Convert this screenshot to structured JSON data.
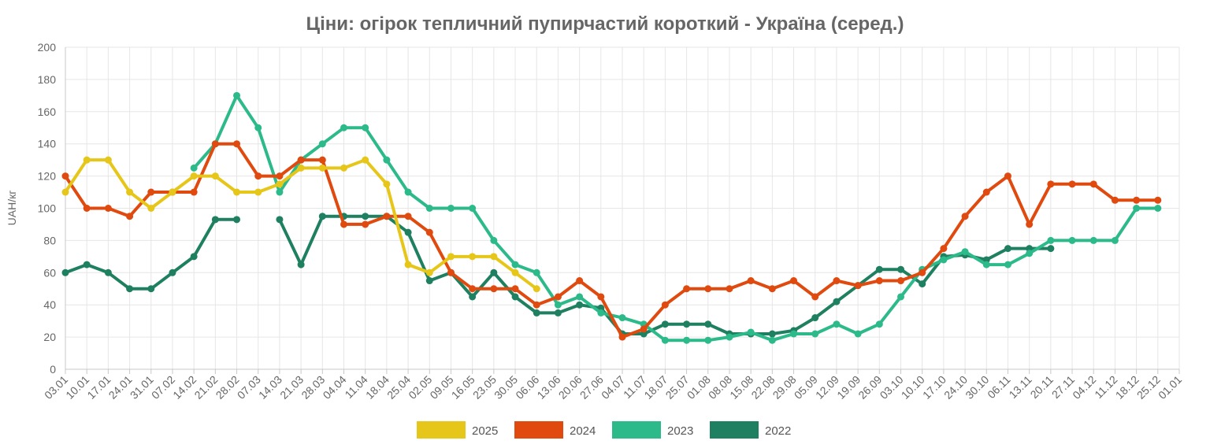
{
  "chart_data": {
    "type": "line",
    "title": "Ціни: огірок тепличний пупирчастий короткий - Україна (серед.)",
    "ylabel": "UAH/кг",
    "xlabel": "",
    "ylim": [
      0,
      200
    ],
    "yticks": [
      0,
      20,
      40,
      60,
      80,
      100,
      120,
      140,
      160,
      180,
      200
    ],
    "grid": true,
    "legend_position": "bottom",
    "categories": [
      "03.01",
      "10.01",
      "17.01",
      "24.01",
      "31.01",
      "07.02",
      "14.02",
      "21.02",
      "28.02",
      "07.03",
      "14.03",
      "21.03",
      "28.03",
      "04.04",
      "11.04",
      "18.04",
      "25.04",
      "02.05",
      "09.05",
      "16.05",
      "23.05",
      "30.05",
      "06.06",
      "13.06",
      "20.06",
      "27.06",
      "04.07",
      "11.07",
      "18.07",
      "25.07",
      "01.08",
      "08.08",
      "15.08",
      "22.08",
      "29.08",
      "05.09",
      "12.09",
      "19.09",
      "26.09",
      "03.10",
      "10.10",
      "17.10",
      "24.10",
      "30.10",
      "06.11",
      "13.11",
      "20.11",
      "27.11",
      "04.12",
      "11.12",
      "18.12",
      "25.12",
      "01.01"
    ],
    "series": [
      {
        "name": "2025",
        "color": "#e6c619",
        "values": [
          110,
          130,
          130,
          110,
          100,
          110,
          120,
          120,
          110,
          110,
          115,
          125,
          125,
          125,
          130,
          115,
          65,
          60,
          70,
          70,
          70,
          60,
          50,
          null,
          null,
          null,
          null,
          null,
          null,
          null,
          null,
          null,
          null,
          null,
          null,
          null,
          null,
          null,
          null,
          null,
          null,
          null,
          null,
          null,
          null,
          null,
          null,
          null,
          null,
          null,
          null,
          null,
          null
        ]
      },
      {
        "name": "2024",
        "color": "#e04a0f",
        "values": [
          120,
          100,
          100,
          95,
          110,
          110,
          110,
          140,
          140,
          120,
          120,
          130,
          130,
          90,
          90,
          95,
          95,
          85,
          60,
          50,
          50,
          50,
          40,
          45,
          55,
          45,
          20,
          25,
          40,
          50,
          50,
          50,
          55,
          50,
          55,
          45,
          55,
          52,
          55,
          55,
          60,
          75,
          95,
          110,
          120,
          90,
          115,
          115,
          115,
          105,
          105,
          105,
          null
        ]
      },
      {
        "name": "2023",
        "color": "#2dba8a",
        "values": [
          null,
          null,
          null,
          null,
          null,
          null,
          125,
          140,
          170,
          150,
          110,
          130,
          140,
          150,
          150,
          130,
          110,
          100,
          100,
          100,
          80,
          65,
          60,
          40,
          45,
          35,
          32,
          28,
          18,
          18,
          18,
          20,
          23,
          18,
          22,
          22,
          28,
          22,
          28,
          45,
          62,
          68,
          73,
          65,
          65,
          72,
          80,
          80,
          80,
          80,
          100,
          100,
          null
        ]
      },
      {
        "name": "2022",
        "color": "#1e8060",
        "values": [
          60,
          65,
          60,
          50,
          50,
          60,
          70,
          93,
          93,
          null,
          93,
          65,
          95,
          95,
          95,
          95,
          85,
          55,
          60,
          45,
          60,
          45,
          35,
          35,
          40,
          38,
          22,
          22,
          28,
          28,
          28,
          22,
          22,
          22,
          24,
          32,
          42,
          52,
          62,
          62,
          53,
          70,
          71,
          68,
          75,
          75,
          75,
          null,
          null,
          null,
          null,
          null,
          null
        ]
      }
    ]
  }
}
